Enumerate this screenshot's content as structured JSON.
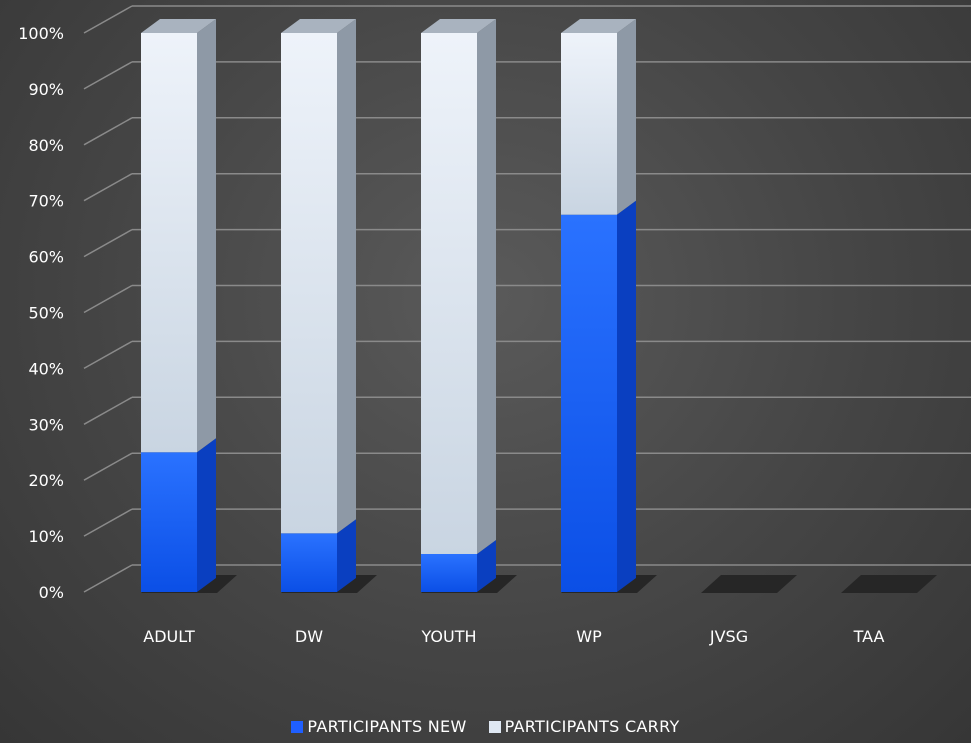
{
  "chart_data": {
    "type": "bar",
    "stacked": true,
    "percent": true,
    "categories": [
      "ADULT",
      "DW",
      "YOUTH",
      "WP",
      "JVSG",
      "TAA"
    ],
    "series": [
      {
        "name": "PARTICIPANTS NEW",
        "values": [
          25,
          10.5,
          6.8,
          67.5,
          0,
          0
        ],
        "color": "#1f5fff"
      },
      {
        "name": "PARTICIPANTS CARRY",
        "values": [
          75,
          89.5,
          93.2,
          32.5,
          0,
          0
        ],
        "color": "#dfe8f3"
      }
    ],
    "yticks": [
      "0%",
      "10%",
      "20%",
      "30%",
      "40%",
      "50%",
      "60%",
      "70%",
      "80%",
      "90%",
      "100%"
    ],
    "ylim": [
      0,
      100
    ],
    "grid": true,
    "legend_position": "bottom"
  }
}
